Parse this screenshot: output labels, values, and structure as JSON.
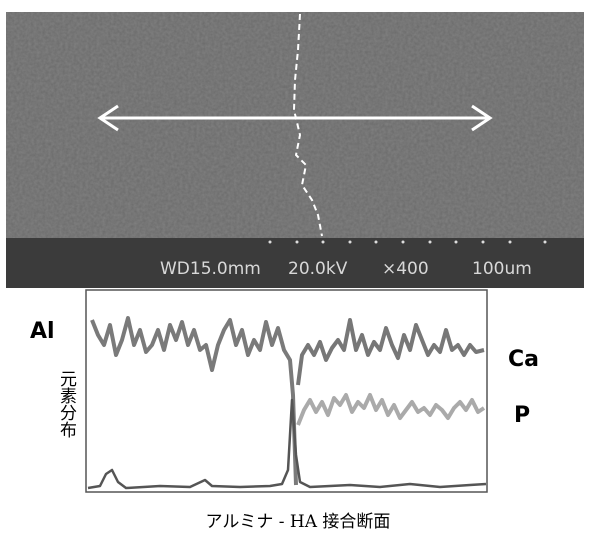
{
  "sem": {
    "info": [
      "WD15.0mm",
      "20.0kV",
      "×400",
      "100um"
    ]
  },
  "profile": {
    "labels": {
      "left": "Al",
      "right_top": "Ca",
      "right_bottom": "P"
    },
    "axis_label": "元素分布"
  },
  "caption": "アルミナ - HA 接合断面"
}
